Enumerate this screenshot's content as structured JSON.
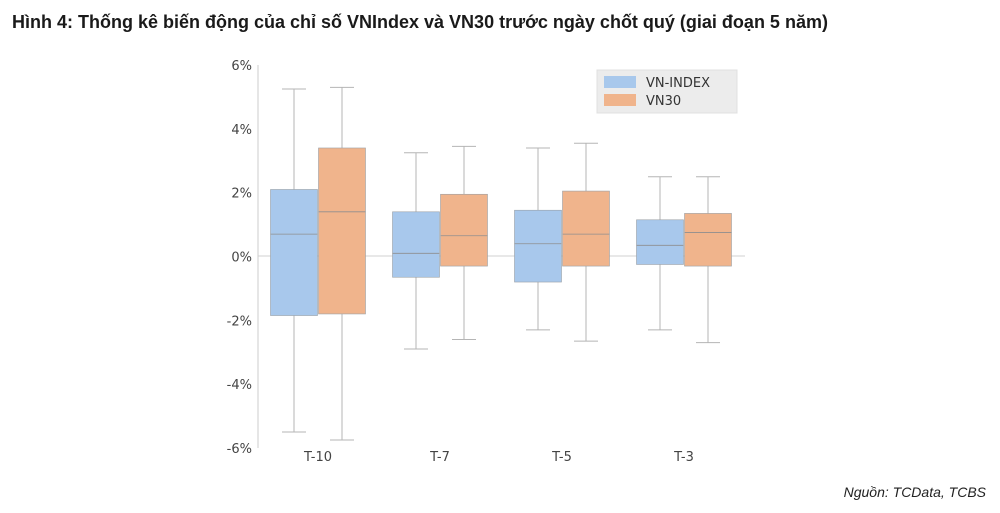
{
  "figure": {
    "title": "Hình 4: Thống kê biến động của chỉ số VNIndex và VN30 trước ngày chốt quý (giai đoạn 5 năm)",
    "source": "Nguồn: TCData,  TCBS"
  },
  "chart_data": {
    "type": "boxplot",
    "title": "",
    "xlabel": "",
    "ylabel": "",
    "categories": [
      "T-10",
      "T-7",
      "T-5",
      "T-3"
    ],
    "y_ticks": [
      "-6%",
      "-4%",
      "-2%",
      "0%",
      "2%",
      "4%",
      "6%"
    ],
    "ylim": [
      -6,
      6
    ],
    "unit": "%",
    "legend_position": "top-right",
    "grid": false,
    "series": [
      {
        "name": "VN-INDEX",
        "color": "#a8c8ec",
        "boxes": [
          {
            "min": -5.5,
            "q1": -1.85,
            "median": 0.7,
            "q3": 2.1,
            "max": 5.25
          },
          {
            "min": -2.9,
            "q1": -0.65,
            "median": 0.1,
            "q3": 1.4,
            "max": 3.25
          },
          {
            "min": -2.3,
            "q1": -0.8,
            "median": 0.4,
            "q3": 1.45,
            "max": 3.4
          },
          {
            "min": -2.3,
            "q1": -0.25,
            "median": 0.35,
            "q3": 1.15,
            "max": 2.5
          }
        ]
      },
      {
        "name": "VN30",
        "color": "#f0b48c",
        "boxes": [
          {
            "min": -5.75,
            "q1": -1.8,
            "median": 1.4,
            "q3": 3.4,
            "max": 5.3
          },
          {
            "min": -2.6,
            "q1": -0.3,
            "median": 0.65,
            "q3": 1.95,
            "max": 3.45
          },
          {
            "min": -2.65,
            "q1": -0.3,
            "median": 0.7,
            "q3": 2.05,
            "max": 3.55
          },
          {
            "min": -2.7,
            "q1": -0.3,
            "median": 0.75,
            "q3": 1.35,
            "max": 2.5
          }
        ]
      }
    ]
  }
}
